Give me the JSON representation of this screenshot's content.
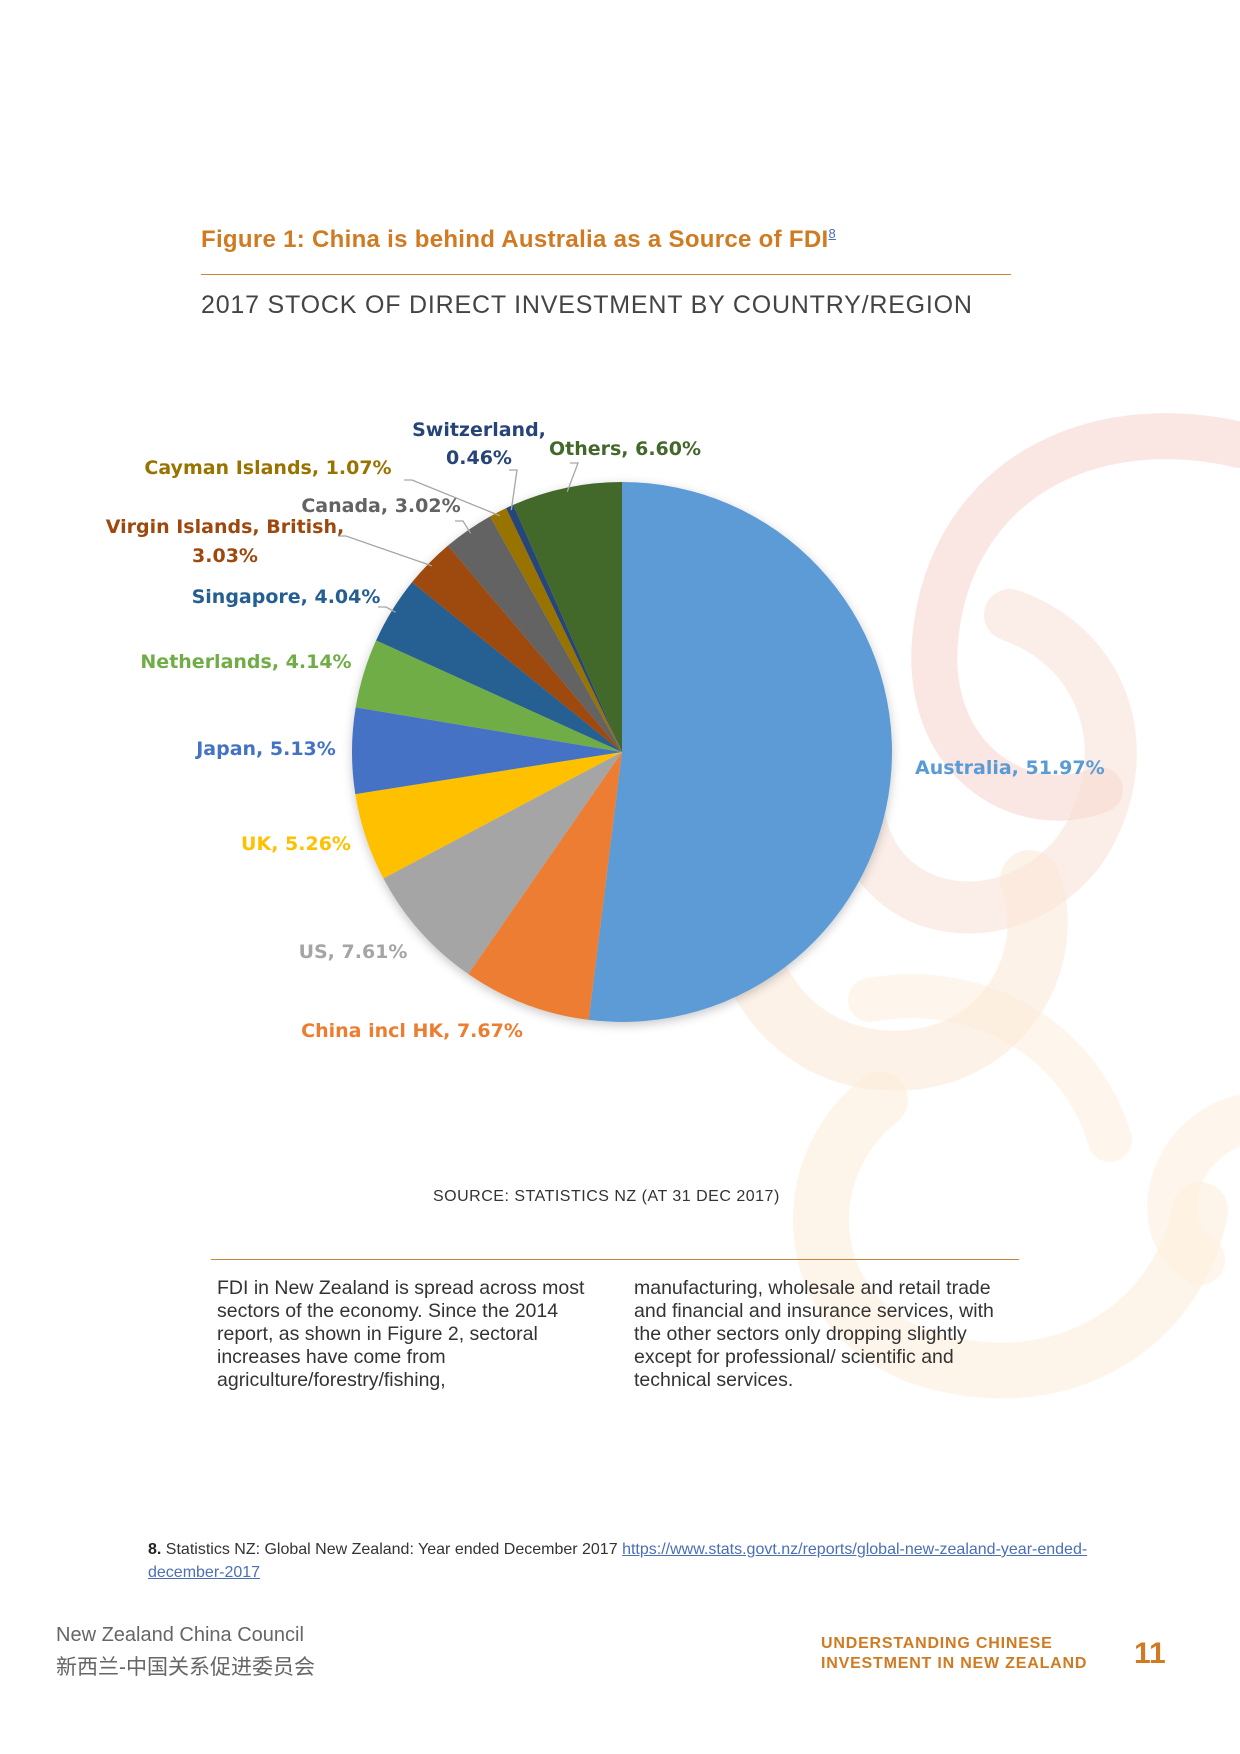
{
  "figure": {
    "title": "Figure 1: China is behind Australia as a Source of FDI",
    "footnote_ref": "8",
    "subtitle": "2017 STOCK OF DIRECT INVESTMENT BY COUNTRY/REGION",
    "source": "SOURCE: STATISTICS NZ (AT 31 DEC 2017)"
  },
  "chart_data": {
    "type": "pie",
    "title": "",
    "start": "12 o'clock, clockwise",
    "slices": [
      {
        "label": "Australia, 51.97%",
        "name": "Australia",
        "value": 51.97,
        "color": "#5b9bd5",
        "label_color": "#5b9bd5"
      },
      {
        "label": "China incl HK, 7.67%",
        "name": "China incl HK",
        "value": 7.67,
        "color": "#ed7d31",
        "label_color": "#ed7d31"
      },
      {
        "label": "US, 7.61%",
        "name": "US",
        "value": 7.61,
        "color": "#a5a5a5",
        "label_color": "#a5a5a5"
      },
      {
        "label": "UK, 5.26%",
        "name": "UK",
        "value": 5.26,
        "color": "#ffc000",
        "label_color": "#ffc000"
      },
      {
        "label": "Japan, 5.13%",
        "name": "Japan",
        "value": 5.13,
        "color": "#4472c4",
        "label_color": "#4472c4"
      },
      {
        "label": "Netherlands, 4.14%",
        "name": "Netherlands",
        "value": 4.14,
        "color": "#70ad47",
        "label_color": "#70ad47"
      },
      {
        "label": "Singapore, 4.04%",
        "name": "Singapore",
        "value": 4.04,
        "color": "#255e91",
        "label_color": "#255e91"
      },
      {
        "label_lines": [
          "Virgin Islands, British,",
          "3.03%"
        ],
        "name": "Virgin Islands, British",
        "value": 3.03,
        "color": "#9e480e",
        "label_color": "#9e480e"
      },
      {
        "label": "Canada, 3.02%",
        "name": "Canada",
        "value": 3.02,
        "color": "#636363",
        "label_color": "#636363"
      },
      {
        "label": "Cayman Islands, 1.07%",
        "name": "Cayman Islands",
        "value": 1.07,
        "color": "#997300",
        "label_color": "#997300"
      },
      {
        "label_lines": [
          "Switzerland,",
          "0.46%"
        ],
        "name": "Switzerland",
        "value": 0.46,
        "color": "#264478",
        "label_color": "#264478"
      },
      {
        "label": "Others, 6.60%",
        "name": "Others",
        "value": 6.6,
        "color": "#43682b",
        "label_color": "#43682b"
      }
    ]
  },
  "body_text": {
    "col1": "FDI in New Zealand is spread across most sectors of the economy.  Since the 2014 report, as shown in Figure 2, sectoral increases have come from agriculture/forestry/fishing,",
    "col2": "manufacturing, wholesale and retail trade and financial and insurance services, with the other sectors only dropping slightly except for professional/ scientific and technical services."
  },
  "footnote": {
    "number": "8.",
    "text": "Statistics NZ: Global New Zealand: Year ended December 2017",
    "link": "https://www.stats.govt.nz/reports/global-new-zealand-year-ended-december-2017"
  },
  "footer": {
    "org_en": "New Zealand China Council",
    "org_zh": "新西兰-中国关系促进委员会",
    "report_title": "UNDERSTANDING CHINESE INVESTMENT IN NEW ZEALAND",
    "page_number": "11"
  }
}
